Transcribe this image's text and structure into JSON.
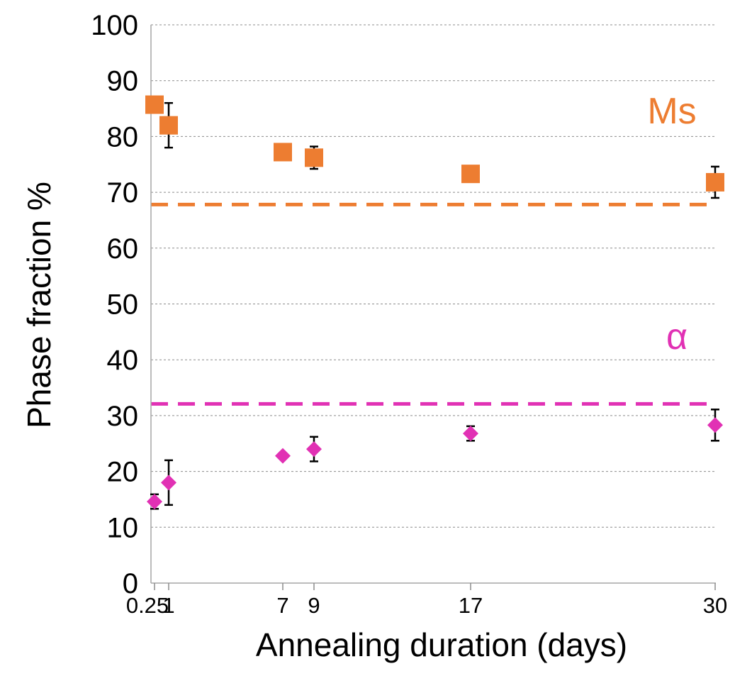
{
  "chart_data": {
    "type": "scatter",
    "title": "",
    "xlabel": "Annealing duration (days)",
    "ylabel": "Phase fraction %",
    "xlim": [
      0,
      30
    ],
    "ylim": [
      0,
      100
    ],
    "grid": "horizontal-dashed",
    "x_ticks": [
      0.25,
      1,
      7,
      9,
      17,
      30
    ],
    "x_tick_labels": [
      "0.25",
      "1",
      "7",
      "9",
      "17",
      "30"
    ],
    "y_ticks": [
      0,
      10,
      20,
      30,
      40,
      50,
      60,
      70,
      80,
      90,
      100
    ],
    "y_tick_labels": [
      "0",
      "10",
      "20",
      "30",
      "40",
      "50",
      "60",
      "70",
      "80",
      "90",
      "100"
    ],
    "series": [
      {
        "name": "Ms",
        "color": "#ED7D31",
        "marker": "square",
        "points": [
          {
            "x": 0.25,
            "y": 85.7,
            "err": null
          },
          {
            "x": 1,
            "y": 82,
            "err": 4
          },
          {
            "x": 7,
            "y": 77.2,
            "err": null
          },
          {
            "x": 9,
            "y": 76.2,
            "err": 2
          },
          {
            "x": 17,
            "y": 73.3,
            "err": null
          },
          {
            "x": 30,
            "y": 71.8,
            "err": 2.8
          }
        ]
      },
      {
        "name": "α",
        "color": "#E131B4",
        "marker": "diamond",
        "points": [
          {
            "x": 0.25,
            "y": 14.6,
            "err": 1.3
          },
          {
            "x": 1,
            "y": 18,
            "err": 4
          },
          {
            "x": 7,
            "y": 22.8,
            "err": null
          },
          {
            "x": 9,
            "y": 24,
            "err": 2.2
          },
          {
            "x": 17,
            "y": 26.8,
            "err": 1.3
          },
          {
            "x": 30,
            "y": 28.3,
            "err": 2.8
          }
        ]
      }
    ],
    "reference_lines": [
      {
        "series": "Ms",
        "y": 67.8,
        "style": "dashed",
        "color": "#ED7D31"
      },
      {
        "series": "α",
        "y": 32.1,
        "style": "dashed",
        "color": "#E131B4"
      }
    ],
    "annotations": [
      {
        "text": "Ms",
        "color": "#ED7D31"
      },
      {
        "text": "α",
        "color": "#E131B4"
      }
    ]
  }
}
